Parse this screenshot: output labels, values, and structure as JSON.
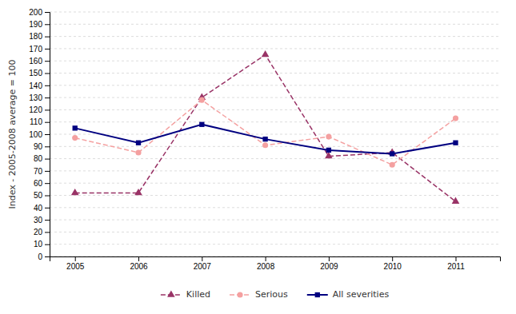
{
  "chart_data": {
    "type": "line",
    "y_label": "Index - 2005-2008 average = 100",
    "x": [
      2005,
      2006,
      2007,
      2008,
      2009,
      2010,
      2011
    ],
    "xlim": [
      2004.6,
      2011.7
    ],
    "xticks": [
      2005,
      2006,
      2007,
      2008,
      2009,
      2010,
      2011
    ],
    "ylim": [
      0,
      200
    ],
    "yticks": [
      0,
      10,
      20,
      30,
      40,
      50,
      60,
      70,
      80,
      90,
      100,
      110,
      120,
      130,
      140,
      150,
      160,
      170,
      180,
      190,
      200
    ],
    "grid": true,
    "legend": "bottom",
    "series": [
      {
        "name": "Killed",
        "color": "#993366",
        "marker": "triangle",
        "line_style": "dashed",
        "values": [
          52,
          52,
          130,
          165,
          82,
          85,
          45
        ]
      },
      {
        "name": "Serious",
        "color": "#F4A0A0",
        "marker": "circle",
        "line_style": "dashed",
        "values": [
          97,
          85,
          128,
          91,
          98,
          75,
          113
        ]
      },
      {
        "name": "All severities",
        "color": "#000080",
        "marker": "square",
        "line_style": "solid",
        "values": [
          105,
          93,
          108,
          96,
          87,
          84,
          93
        ]
      }
    ]
  }
}
